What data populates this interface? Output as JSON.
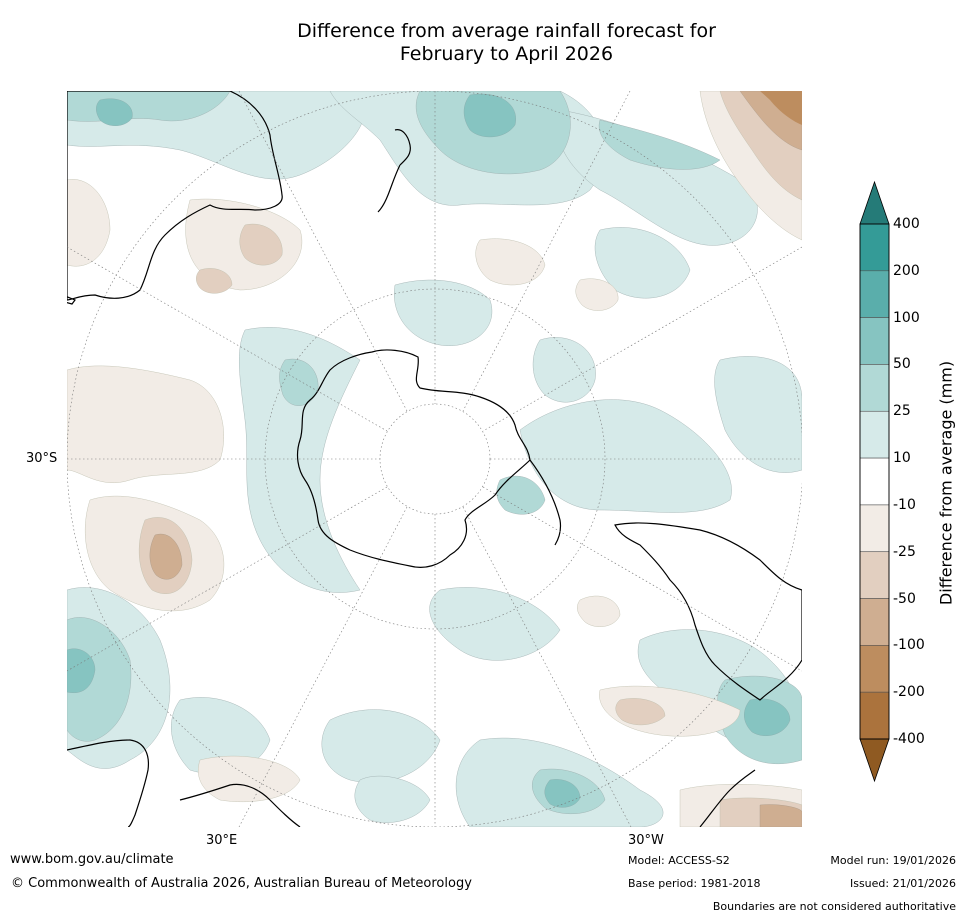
{
  "title": {
    "line1": "Difference from average rainfall forecast for",
    "line2": "February to April 2026"
  },
  "map": {
    "projection": "South polar stereographic",
    "axis_labels": {
      "left": "30°S",
      "bottom_left": "30°E",
      "bottom_right": "30°W"
    }
  },
  "legend": {
    "title": "Difference from average (mm)",
    "ticks": [
      "400",
      "200",
      "100",
      "50",
      "25",
      "10",
      "-10",
      "-25",
      "-50",
      "-100",
      "-200",
      "-400"
    ],
    "colors": {
      "over": "#257b78",
      "bins": [
        "#349b97",
        "#5aaeab",
        "#86c4c1",
        "#b1d9d6",
        "#d6eae9",
        "#ffffff",
        "#f2ece6",
        "#e2cfc0",
        "#cfae91",
        "#bd8d5f",
        "#ab733d"
      ],
      "under": "#8f5a22"
    }
  },
  "footer": {
    "url": "www.bom.gov.au/climate",
    "copyright": "© Commonwealth of Australia 2026, Australian Bureau of Meteorology",
    "model": "Model: ACCESS-S2",
    "base_period": "Base period: 1981-2018",
    "model_run": "Model run: 19/01/2026",
    "issued": "Issued: 21/01/2026",
    "disclaimer": "Boundaries are not considered authoritative"
  }
}
